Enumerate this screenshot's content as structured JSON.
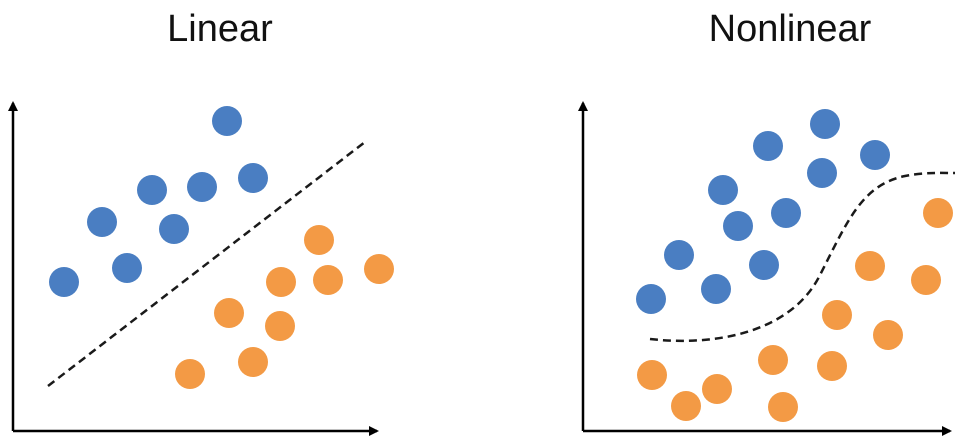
{
  "titles": {
    "left": "Linear",
    "right": "Nonlinear"
  },
  "colors": {
    "class_a": "#4A7EC2",
    "class_b": "#F39A45",
    "axis": "#000000",
    "boundary": "#1a1a1a"
  },
  "panels": [
    {
      "id": "linear",
      "boundary": "straight-line",
      "class_a_points": [
        [
          227,
          121
        ],
        [
          152,
          190
        ],
        [
          202,
          187
        ],
        [
          253,
          178
        ],
        [
          102,
          222
        ],
        [
          174,
          229
        ],
        [
          127,
          268
        ],
        [
          64,
          282
        ]
      ],
      "class_b_points": [
        [
          319,
          240
        ],
        [
          281,
          282
        ],
        [
          328,
          280
        ],
        [
          379,
          269
        ],
        [
          229,
          313
        ],
        [
          280,
          326
        ],
        [
          253,
          362
        ],
        [
          190,
          374
        ]
      ]
    },
    {
      "id": "nonlinear",
      "boundary": "s-curve",
      "class_a_points": [
        [
          825,
          124
        ],
        [
          768,
          146
        ],
        [
          875,
          155
        ],
        [
          822,
          173
        ],
        [
          723,
          190
        ],
        [
          786,
          213
        ],
        [
          738,
          226
        ],
        [
          679,
          255
        ],
        [
          764,
          265
        ],
        [
          716,
          289
        ],
        [
          651,
          299
        ]
      ],
      "class_b_points": [
        [
          938,
          213
        ],
        [
          870,
          266
        ],
        [
          926,
          280
        ],
        [
          837,
          315
        ],
        [
          888,
          335
        ],
        [
          773,
          360
        ],
        [
          832,
          366
        ],
        [
          652,
          375
        ],
        [
          717,
          389
        ],
        [
          686,
          406
        ],
        [
          783,
          407
        ]
      ]
    }
  ]
}
